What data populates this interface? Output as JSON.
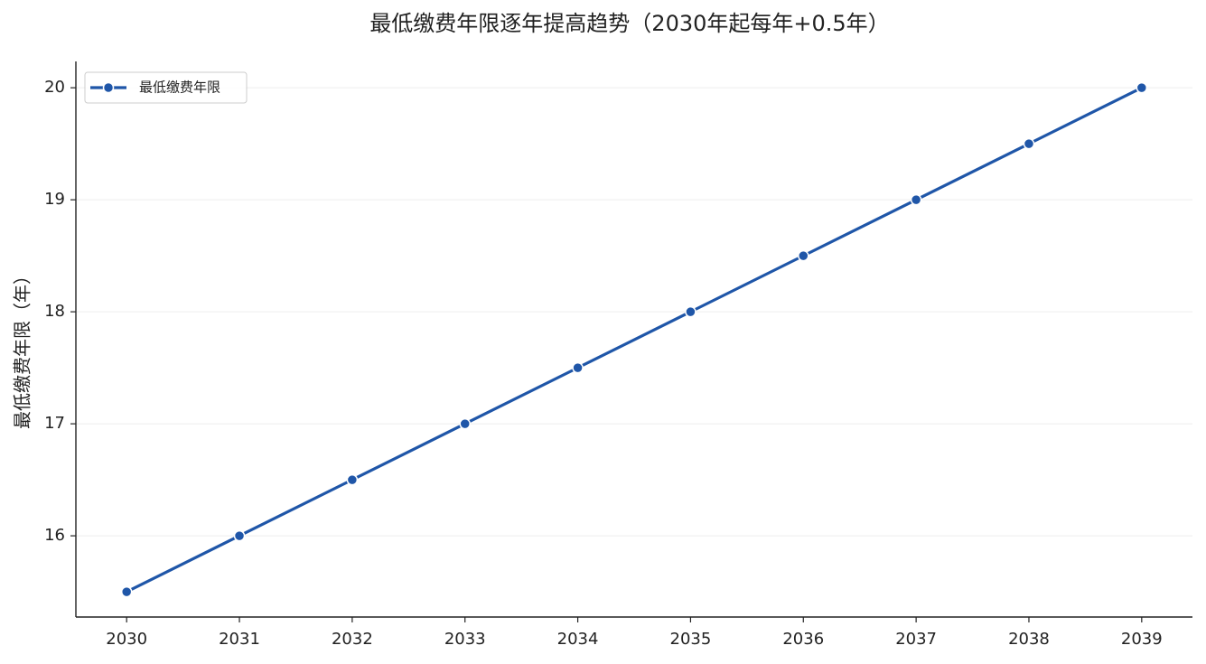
{
  "chart_data": {
    "type": "line",
    "title": "最低缴费年限逐年提高趋势（2030年起每年+0.5年）",
    "ylabel": "最低缴费年限（年）",
    "x": [
      2030,
      2031,
      2032,
      2033,
      2034,
      2035,
      2036,
      2037,
      2038,
      2039
    ],
    "series": [
      {
        "name": "最低缴费年限",
        "color": "#1f56a8",
        "values": [
          15.5,
          16,
          16.5,
          17,
          17.5,
          18,
          18.5,
          19,
          19.5,
          20
        ]
      }
    ],
    "xlim": [
      2029.55,
      2039.45
    ],
    "xticks": [
      2030,
      2031,
      2032,
      2033,
      2034,
      2035,
      2036,
      2037,
      2038,
      2039
    ],
    "ylim": [
      15.275,
      20.235
    ],
    "yticks": [
      16,
      17,
      18,
      19,
      20
    ],
    "grid": true,
    "legend": "upper-left"
  }
}
